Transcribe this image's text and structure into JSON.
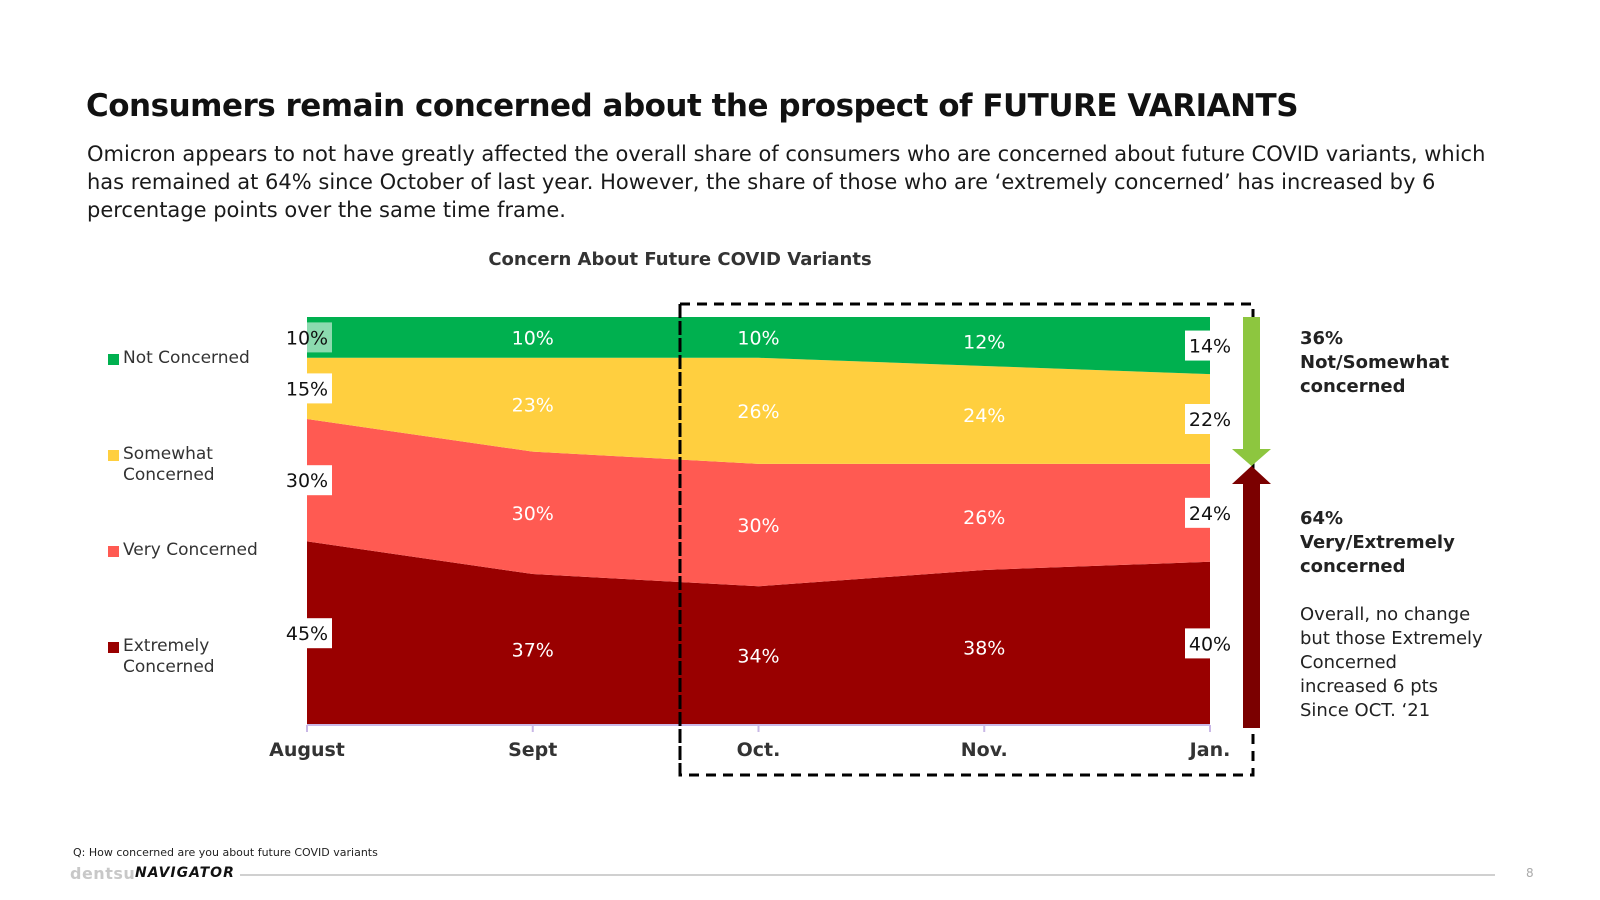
{
  "header": {
    "title": "Consumers remain concerned about the prospect of FUTURE VARIANTS",
    "subtitle": "Omicron appears to not have greatly affected the overall share of consumers who are concerned about future COVID variants, which has remained at 64% since October of last year. However, the share of those who are ‘extremely concerned’ has increased by 6 percentage points over the same time frame."
  },
  "chart_data": {
    "type": "area",
    "title": "Concern About Future COVID Variants",
    "categories": [
      "August",
      "Sept",
      "Oct.",
      "Nov.",
      "Jan."
    ],
    "ylim": [
      0,
      100
    ],
    "stacked": true,
    "series": [
      {
        "name": "Extremely Concerned",
        "values": [
          45,
          37,
          34,
          38,
          40
        ],
        "labels": [
          "45%",
          "37%",
          "34%",
          "38%",
          "40%"
        ],
        "color": "#990000"
      },
      {
        "name": "Very Concerned",
        "values": [
          30,
          30,
          30,
          26,
          24
        ],
        "labels": [
          "30%",
          "30%",
          "30%",
          "26%",
          "24%"
        ],
        "color": "#FF5A52"
      },
      {
        "name": "Somewhat Concerned",
        "values": [
          15,
          23,
          26,
          24,
          22
        ],
        "labels": [
          "15%",
          "23%",
          "26%",
          "24%",
          "22%"
        ],
        "color": "#FFCF3F"
      },
      {
        "name": "Not Concerned",
        "values": [
          10,
          10,
          10,
          12,
          14
        ],
        "labels": [
          "10%",
          "10%",
          "10%",
          "12%",
          "14%"
        ],
        "color": "#00B04F"
      }
    ],
    "highlight_range": [
      "Oct.",
      "Jan."
    ]
  },
  "legend": {
    "not_concerned": "Not Concerned",
    "somewhat_1": "Somewhat",
    "somewhat_2": "Concerned",
    "very": "Very Concerned",
    "extremely_1": "Extremely",
    "extremely_2": "Concerned"
  },
  "side": {
    "top_pct": "36%",
    "top_l1": "Not/Somewhat",
    "top_l2": "concerned",
    "bottom_pct": "64%",
    "bottom_l1": "Very/Extremely",
    "bottom_l2": "concerned",
    "note_l1": "Overall, no change",
    "note_l2": "but those Extremely",
    "note_l3": "Concerned",
    "note_l4": "increased 6 pts",
    "note_l5": "Since OCT. ‘21",
    "colors": {
      "arrow_down": "#8DC63F",
      "arrow_up": "#7B0000"
    }
  },
  "footer": {
    "question": "Q: How concerned are you about future COVID variants",
    "brand": "dentsu",
    "brand_product": "NAVIGATOR",
    "page": "8"
  }
}
